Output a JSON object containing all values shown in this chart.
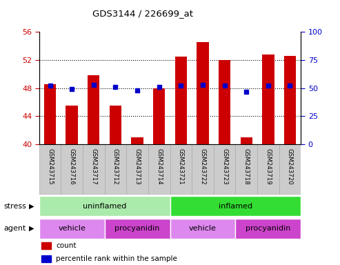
{
  "title": "GDS3144 / 226699_at",
  "samples": [
    "GSM243715",
    "GSM243716",
    "GSM243717",
    "GSM243712",
    "GSM243713",
    "GSM243714",
    "GSM243721",
    "GSM243722",
    "GSM243723",
    "GSM243718",
    "GSM243719",
    "GSM243720"
  ],
  "counts": [
    48.6,
    45.5,
    49.8,
    45.5,
    41.0,
    48.0,
    52.5,
    54.5,
    52.0,
    41.0,
    52.8,
    52.6
  ],
  "percentiles": [
    52,
    49,
    53,
    51,
    48,
    51,
    52,
    53,
    52,
    47,
    52,
    52
  ],
  "ylim_left": [
    40,
    56
  ],
  "ylim_right": [
    0,
    100
  ],
  "yticks_left": [
    40,
    44,
    48,
    52,
    56
  ],
  "yticks_right": [
    0,
    25,
    50,
    75,
    100
  ],
  "bar_color": "#cc0000",
  "dot_color": "#0000cc",
  "bar_width": 0.55,
  "stress_groups": [
    {
      "label": "uninflamed",
      "start": 0,
      "end": 6,
      "color": "#aaeaaa"
    },
    {
      "label": "inflamed",
      "start": 6,
      "end": 12,
      "color": "#33dd33"
    }
  ],
  "agent_groups": [
    {
      "label": "vehicle",
      "start": 0,
      "end": 3,
      "color": "#dd88ee"
    },
    {
      "label": "procyanidin",
      "start": 3,
      "end": 6,
      "color": "#cc44cc"
    },
    {
      "label": "vehicle",
      "start": 6,
      "end": 9,
      "color": "#dd88ee"
    },
    {
      "label": "procyanidin",
      "start": 9,
      "end": 12,
      "color": "#cc44cc"
    }
  ],
  "stress_label": "stress",
  "agent_label": "agent",
  "legend_count_label": "count",
  "legend_pct_label": "percentile rank within the sample",
  "grid_dotted_yticks": [
    44,
    48,
    52
  ],
  "tick_label_color_left": "#cc0000",
  "tick_label_color_right": "#0000cc",
  "xtick_box_color": "#cccccc",
  "xtick_box_edge_color": "#aaaaaa"
}
